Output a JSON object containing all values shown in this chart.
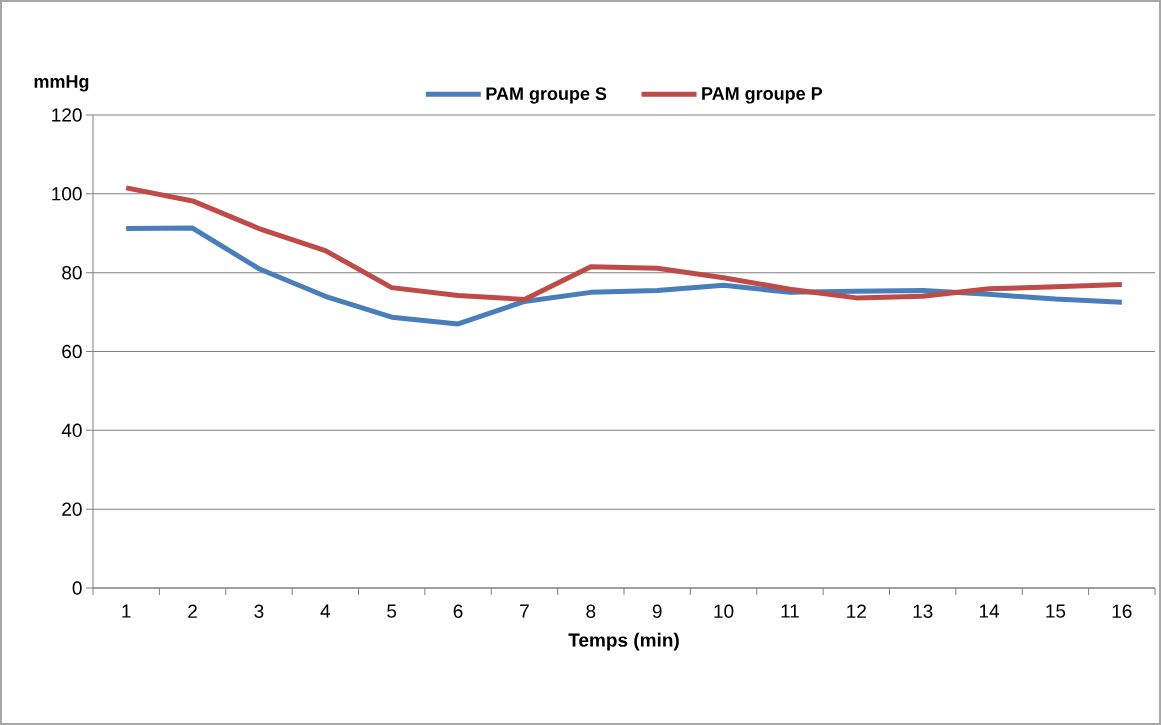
{
  "chart_data": {
    "type": "line",
    "ylabel": "mmHg",
    "xlabel": "Temps (min)",
    "categories": [
      "1",
      "2",
      "3",
      "4",
      "5",
      "6",
      "7",
      "8",
      "9",
      "10",
      "11",
      "12",
      "13",
      "14",
      "15",
      "16"
    ],
    "series": [
      {
        "name": "PAM groupe S",
        "color": "#4a7ebb",
        "values": [
          91.2,
          91.3,
          81,
          74,
          68.7,
          67,
          72.7,
          75,
          75.5,
          76.8,
          75,
          75.3,
          75.5,
          74.5,
          73.3,
          72.5
        ]
      },
      {
        "name": "PAM groupe P",
        "color": "#be4b48",
        "values": [
          101.5,
          98.2,
          91.2,
          85.6,
          76.2,
          74.2,
          73.2,
          81.5,
          81.1,
          78.7,
          75.8,
          73.6,
          74,
          75.9,
          76.4,
          77
        ]
      }
    ],
    "ylim": [
      0,
      120
    ],
    "yticks": [
      0,
      20,
      40,
      60,
      80,
      100,
      120
    ],
    "grid": "y",
    "legend": "top",
    "marker": "none",
    "line_style": "solid"
  }
}
